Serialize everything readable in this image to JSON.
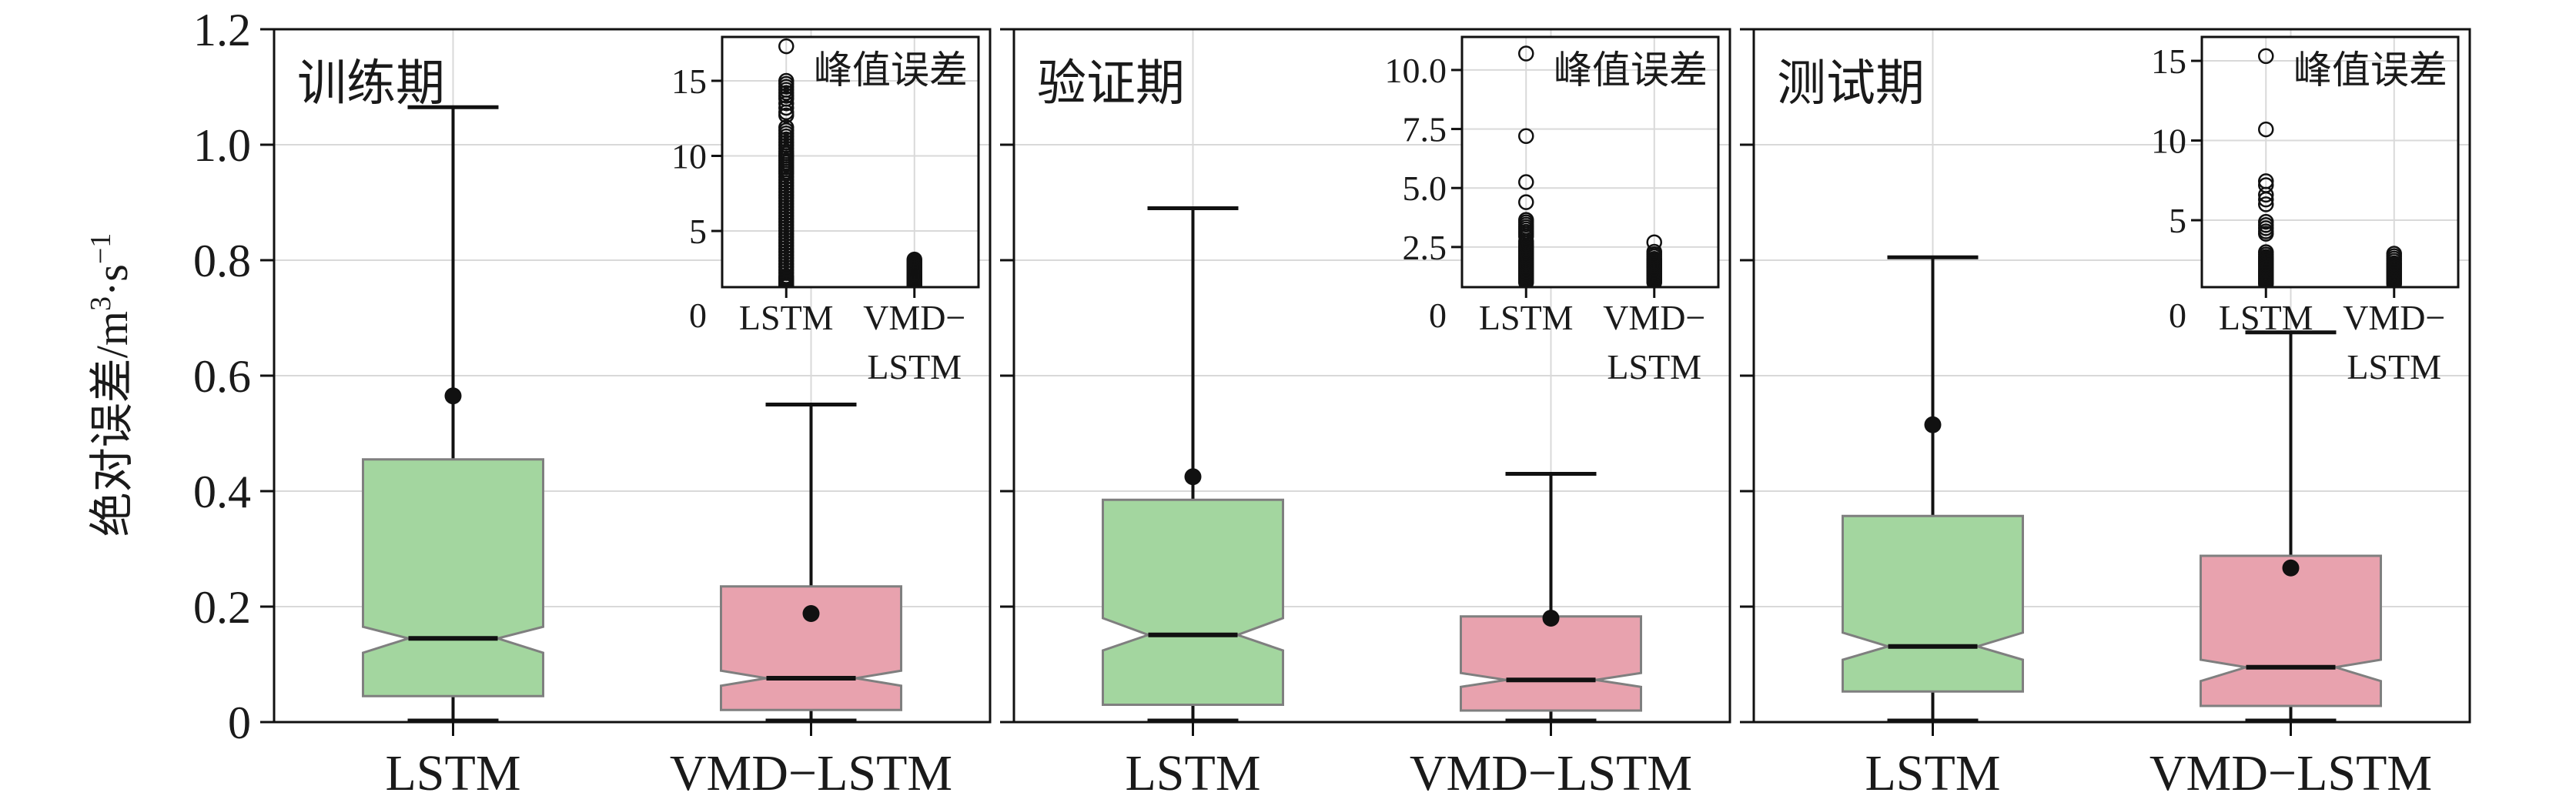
{
  "colors": {
    "green": "#a3d69f",
    "pink": "#e8a2ae",
    "box_edge": "#7f7f7f",
    "grid": "#d9d9d9",
    "axis": "#111111",
    "text": "#1a1a1a",
    "background": "#ffffff"
  },
  "y_axis": {
    "label_parts": [
      {
        "t": "绝对误差/m"
      },
      {
        "t": "3",
        "sup": true
      },
      {
        "t": "·s"
      },
      {
        "t": "−1",
        "sup": true
      }
    ],
    "min": 0,
    "max": 1.2,
    "ticks": [
      {
        "v": 0.0,
        "label": "0"
      },
      {
        "v": 0.2,
        "label": "0.2"
      },
      {
        "v": 0.4,
        "label": "0.4"
      },
      {
        "v": 0.6,
        "label": "0.6"
      },
      {
        "v": 0.8,
        "label": "0.8"
      },
      {
        "v": 1.0,
        "label": "1.0"
      },
      {
        "v": 1.2,
        "label": "1.2"
      }
    ]
  },
  "chart_data": [
    {
      "type": "box",
      "title": "训练期",
      "categories": [
        "LSTM",
        "VMD−LSTM"
      ],
      "ylim": [
        0,
        1.2
      ],
      "grid": true,
      "boxes": [
        {
          "label": "LSTM",
          "whislo": 0,
          "q1": 0.045,
          "med": 0.145,
          "q3": 0.455,
          "whishi": 1.065,
          "mean": 0.565,
          "notch_lo": 0.12,
          "notch_hi": 0.165,
          "color": "green"
        },
        {
          "label": "VMD−LSTM",
          "whislo": 0,
          "q1": 0.021,
          "med": 0.076,
          "q3": 0.235,
          "whishi": 0.55,
          "mean": 0.188,
          "notch_lo": 0.063,
          "notch_hi": 0.089,
          "color": "pink"
        }
      ],
      "inset": {
        "title": "峰值误差",
        "zero_label": "0",
        "ylim": [
          1.26,
          17.92
        ],
        "yticks": [
          {
            "v": 5,
            "label": "5"
          },
          {
            "v": 10,
            "label": "10"
          },
          {
            "v": 15,
            "label": "15"
          }
        ],
        "xlabels": [
          [
            "LSTM"
          ],
          [
            "VMD−",
            "LSTM"
          ]
        ],
        "points": [
          [
            17.3,
            15.0,
            14.8,
            14.6,
            14.4,
            14.2,
            14.0,
            13.8,
            13.5,
            13.2,
            12.9,
            12.7,
            11.9,
            11.7,
            11.5,
            11.3,
            11.1,
            10.9,
            10.7,
            10.5,
            10.3,
            10.15,
            10.0,
            9.85,
            9.7,
            9.55,
            9.4,
            9.25,
            9.1,
            8.95,
            8.8,
            8.6,
            8.4,
            8.2,
            8.0,
            7.8,
            7.6,
            7.4,
            7.2,
            7.0,
            6.8,
            6.6,
            6.4,
            6.2,
            6.0,
            5.8,
            5.6,
            5.4,
            5.2,
            5.0,
            4.8,
            4.6,
            4.4,
            4.2,
            4.0,
            3.8,
            3.6,
            3.4,
            3.2,
            3.0,
            2.8,
            2.6,
            2.4,
            2.2,
            2.0,
            1.9,
            1.8,
            1.7,
            1.6,
            1.5,
            1.4,
            1.35,
            1.3
          ],
          [
            3.1,
            3.0,
            2.9,
            2.8,
            2.7,
            2.6,
            2.5,
            2.4,
            2.3,
            2.2,
            2.1,
            2.0,
            1.95,
            1.9,
            1.85,
            1.8,
            1.75,
            1.7,
            1.65,
            1.6,
            1.55,
            1.5,
            1.45,
            1.4,
            1.35,
            1.3
          ]
        ]
      }
    },
    {
      "type": "box",
      "title": "验证期",
      "categories": [
        "LSTM",
        "VMD−LSTM"
      ],
      "ylim": [
        0,
        1.2
      ],
      "grid": true,
      "boxes": [
        {
          "label": "LSTM",
          "whislo": 0,
          "q1": 0.03,
          "med": 0.151,
          "q3": 0.385,
          "whishi": 0.89,
          "mean": 0.425,
          "notch_lo": 0.124,
          "notch_hi": 0.18,
          "color": "green"
        },
        {
          "label": "VMD−LSTM",
          "whislo": 0,
          "q1": 0.02,
          "med": 0.073,
          "q3": 0.183,
          "whishi": 0.43,
          "mean": 0.18,
          "notch_lo": 0.061,
          "notch_hi": 0.085,
          "color": "pink"
        }
      ],
      "inset": {
        "title": "峰值误差",
        "zero_label": "0",
        "ylim": [
          0.8,
          11.4
        ],
        "yticks": [
          {
            "v": 2.5,
            "label": "2.5"
          },
          {
            "v": 5.0,
            "label": "5.0"
          },
          {
            "v": 7.5,
            "label": "7.5"
          },
          {
            "v": 10.0,
            "label": "10.0"
          }
        ],
        "xlabels": [
          [
            "LSTM"
          ],
          [
            "VMD−",
            "LSTM"
          ]
        ],
        "points": [
          [
            10.7,
            7.2,
            5.25,
            4.4,
            3.65,
            3.55,
            3.45,
            3.35,
            3.25,
            3.15,
            3.05,
            2.95,
            2.75,
            2.65,
            2.55,
            2.5,
            2.45,
            2.4,
            2.35,
            2.3,
            2.25,
            2.2,
            2.15,
            2.1,
            2.05,
            2.0,
            1.95,
            1.9,
            1.85,
            1.8,
            1.75,
            1.7,
            1.65,
            1.6,
            1.55,
            1.5,
            1.45,
            1.4,
            1.35,
            1.3,
            1.25,
            1.2,
            1.15,
            1.1,
            1.05,
            1.0
          ],
          [
            2.7,
            2.3,
            2.2,
            2.1,
            2.0,
            1.95,
            1.9,
            1.85,
            1.8,
            1.75,
            1.7,
            1.65,
            1.6,
            1.55,
            1.5,
            1.45,
            1.4,
            1.35,
            1.3,
            1.25,
            1.2,
            1.15,
            1.1,
            1.05,
            1.0
          ]
        ]
      }
    },
    {
      "type": "box",
      "title": "测试期",
      "categories": [
        "LSTM",
        "VMD−LSTM"
      ],
      "ylim": [
        0,
        1.2
      ],
      "grid": true,
      "boxes": [
        {
          "label": "LSTM",
          "whislo": 0,
          "q1": 0.053,
          "med": 0.131,
          "q3": 0.357,
          "whishi": 0.805,
          "mean": 0.515,
          "notch_lo": 0.108,
          "notch_hi": 0.155,
          "color": "green"
        },
        {
          "label": "VMD−LSTM",
          "whislo": 0,
          "q1": 0.028,
          "med": 0.095,
          "q3": 0.288,
          "whishi": 0.675,
          "mean": 0.267,
          "notch_lo": 0.071,
          "notch_hi": 0.108,
          "color": "pink"
        }
      ],
      "inset": {
        "title": "峰值误差",
        "zero_label": "0",
        "ylim": [
          0.8,
          16.5
        ],
        "yticks": [
          {
            "v": 5,
            "label": "5"
          },
          {
            "v": 10,
            "label": "10"
          },
          {
            "v": 15,
            "label": "15"
          }
        ],
        "xlabels": [
          [
            "LSTM"
          ],
          [
            "VMD−",
            "LSTM"
          ]
        ],
        "points": [
          [
            15.3,
            10.7,
            7.45,
            7.2,
            6.6,
            6.3,
            6.0,
            4.9,
            4.7,
            4.5,
            4.3,
            4.15,
            3.0,
            2.85,
            2.7,
            2.6,
            2.5,
            2.4,
            2.3,
            2.2,
            2.1,
            2.0,
            1.9,
            1.8,
            1.7,
            1.6,
            1.5,
            1.4,
            1.3,
            1.2,
            1.1,
            1.0
          ],
          [
            2.9,
            2.75,
            2.6,
            2.45,
            2.3,
            2.2,
            2.1,
            2.0,
            1.9,
            1.8,
            1.7,
            1.6,
            1.5,
            1.4,
            1.3,
            1.2,
            1.1,
            1.0
          ]
        ]
      }
    }
  ]
}
